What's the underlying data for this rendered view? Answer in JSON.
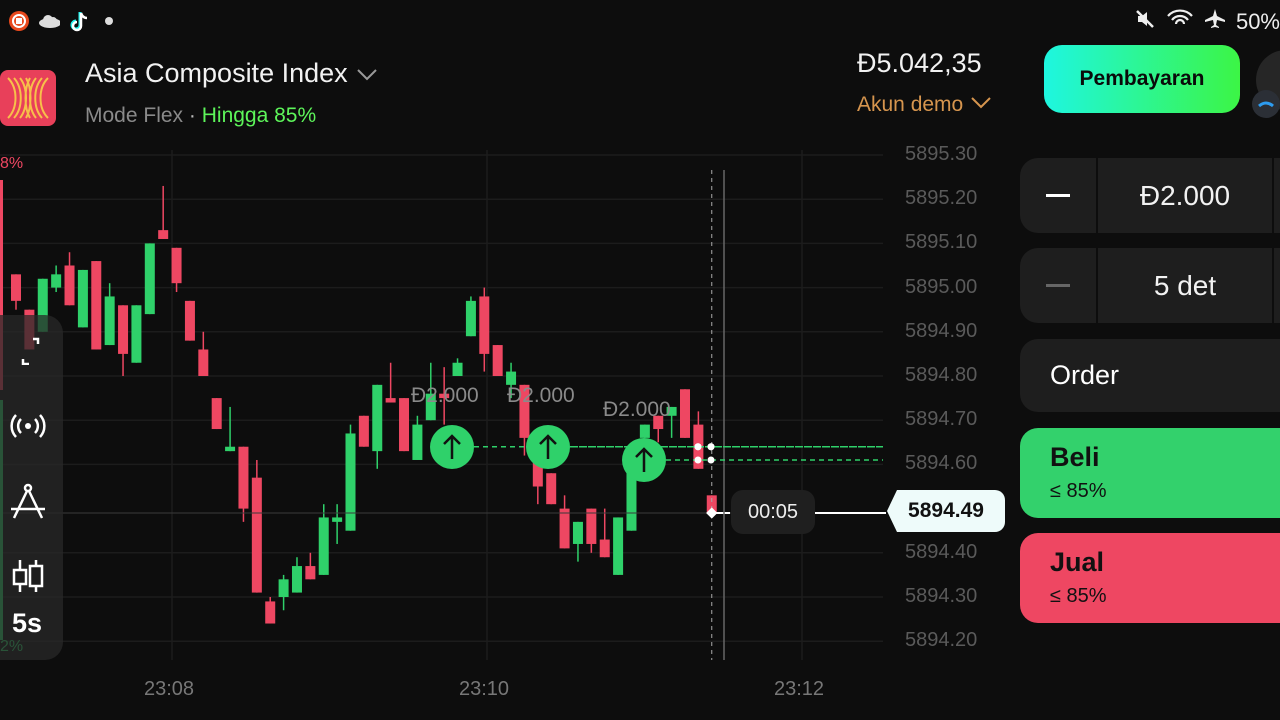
{
  "status_bar": {
    "battery": "50%",
    "left_icons": [
      "screen-recorder-icon",
      "cloud-icon",
      "tiktok-icon",
      "dot-icon"
    ],
    "right_icons": [
      "mute-icon",
      "wifi-icon",
      "airplane-icon"
    ]
  },
  "header": {
    "asset_name": "Asia Composite Index",
    "mode": "Mode Flex",
    "separator": "·",
    "payout": "Hingga 85%",
    "balance": "Đ5.042,35",
    "account": "Akun demo",
    "payment_button": "Pembayaran"
  },
  "colors": {
    "up": "#2fd16a",
    "down": "#ee4762",
    "accent_gradient": [
      "#1ef6e0",
      "#3cf545"
    ],
    "account": "#d6954e",
    "payout": "#5df55a"
  },
  "sentiment": {
    "top": "8%",
    "bottom": "2%"
  },
  "toolbar": {
    "timeframe": "5s",
    "tools": [
      "fullscreen-icon",
      "signal-icon",
      "drawing-compass-icon",
      "candlestick-icon"
    ]
  },
  "trade_panel": {
    "amount": "Đ2.000",
    "duration": "5 det",
    "order_label": "Order",
    "buy": {
      "label": "Beli",
      "payout": "≤ 85%"
    },
    "sell": {
      "label": "Jual",
      "payout": "≤ 85%"
    }
  },
  "chart": {
    "current_price": "5894.49",
    "countdown": "00:05",
    "y_ticks": [
      "5895.30",
      "5895.20",
      "5895.10",
      "5895.00",
      "5894.90",
      "5894.80",
      "5894.70",
      "5894.60",
      "5894.40",
      "5894.30",
      "5894.20"
    ],
    "x_ticks": [
      "23:08",
      "23:10",
      "23:12"
    ],
    "trades": [
      {
        "label": "Đ2.000",
        "direction": "up",
        "price": 5894.64
      },
      {
        "label": "Đ2.000",
        "direction": "up",
        "price": 5894.64
      },
      {
        "label": "Đ2.000",
        "direction": "up",
        "price": 5894.61
      }
    ],
    "candles_ohlc": [
      [
        5895.03,
        5895.03,
        5894.95,
        5894.97
      ],
      [
        5894.95,
        5894.95,
        5894.86,
        5894.86
      ],
      [
        5894.9,
        5895.02,
        5894.9,
        5895.02
      ],
      [
        5895.0,
        5895.05,
        5894.99,
        5895.03
      ],
      [
        5895.05,
        5895.08,
        5894.96,
        5894.96
      ],
      [
        5894.91,
        5895.04,
        5894.91,
        5895.04
      ],
      [
        5895.06,
        5895.06,
        5894.86,
        5894.86
      ],
      [
        5894.87,
        5895.01,
        5894.87,
        5894.98
      ],
      [
        5894.96,
        5894.96,
        5894.8,
        5894.85
      ],
      [
        5894.83,
        5894.96,
        5894.83,
        5894.96
      ],
      [
        5894.94,
        5895.1,
        5894.94,
        5895.1
      ],
      [
        5895.13,
        5895.23,
        5895.11,
        5895.11
      ],
      [
        5895.09,
        5895.09,
        5894.99,
        5895.01
      ],
      [
        5894.97,
        5894.97,
        5894.88,
        5894.88
      ],
      [
        5894.86,
        5894.9,
        5894.8,
        5894.8
      ],
      [
        5894.75,
        5894.75,
        5894.68,
        5894.68
      ],
      [
        5894.63,
        5894.73,
        5894.63,
        5894.64
      ],
      [
        5894.64,
        5894.64,
        5894.47,
        5894.5
      ],
      [
        5894.57,
        5894.61,
        5894.31,
        5894.31
      ],
      [
        5894.29,
        5894.3,
        5894.24,
        5894.24
      ],
      [
        5894.3,
        5894.35,
        5894.27,
        5894.34
      ],
      [
        5894.31,
        5894.39,
        5894.31,
        5894.37
      ],
      [
        5894.37,
        5894.4,
        5894.34,
        5894.34
      ],
      [
        5894.35,
        5894.51,
        5894.35,
        5894.48
      ],
      [
        5894.47,
        5894.51,
        5894.42,
        5894.48
      ],
      [
        5894.45,
        5894.69,
        5894.45,
        5894.67
      ],
      [
        5894.71,
        5894.71,
        5894.64,
        5894.64
      ],
      [
        5894.63,
        5894.78,
        5894.59,
        5894.78
      ],
      [
        5894.75,
        5894.83,
        5894.74,
        5894.74
      ],
      [
        5894.75,
        5894.75,
        5894.63,
        5894.63
      ],
      [
        5894.61,
        5894.71,
        5894.61,
        5894.69
      ],
      [
        5894.7,
        5894.83,
        5894.7,
        5894.76
      ],
      [
        5894.76,
        5894.82,
        5894.69,
        5894.75
      ],
      [
        5894.8,
        5894.84,
        5894.8,
        5894.83
      ],
      [
        5894.89,
        5894.98,
        5894.89,
        5894.97
      ],
      [
        5894.98,
        5895.0,
        5894.81,
        5894.85
      ],
      [
        5894.87,
        5894.87,
        5894.8,
        5894.8
      ],
      [
        5894.78,
        5894.83,
        5894.75,
        5894.81
      ],
      [
        5894.78,
        5894.78,
        5894.62,
        5894.66
      ],
      [
        5894.63,
        5894.63,
        5894.51,
        5894.55
      ],
      [
        5894.58,
        5894.58,
        5894.51,
        5894.51
      ],
      [
        5894.5,
        5894.53,
        5894.41,
        5894.41
      ],
      [
        5894.42,
        5894.47,
        5894.38,
        5894.47
      ],
      [
        5894.5,
        5894.5,
        5894.4,
        5894.42
      ],
      [
        5894.43,
        5894.5,
        5894.39,
        5894.39
      ],
      [
        5894.35,
        5894.48,
        5894.35,
        5894.48
      ],
      [
        5894.45,
        5894.63,
        5894.45,
        5894.63
      ],
      [
        5894.66,
        5894.69,
        5894.66,
        5894.69
      ],
      [
        5894.71,
        5894.71,
        5894.65,
        5894.68
      ],
      [
        5894.71,
        5894.73,
        5894.66,
        5894.73
      ],
      [
        5894.77,
        5894.77,
        5894.66,
        5894.66
      ],
      [
        5894.69,
        5894.72,
        5894.59,
        5894.59
      ],
      [
        5894.53,
        5894.53,
        5894.49,
        5894.49
      ]
    ]
  }
}
